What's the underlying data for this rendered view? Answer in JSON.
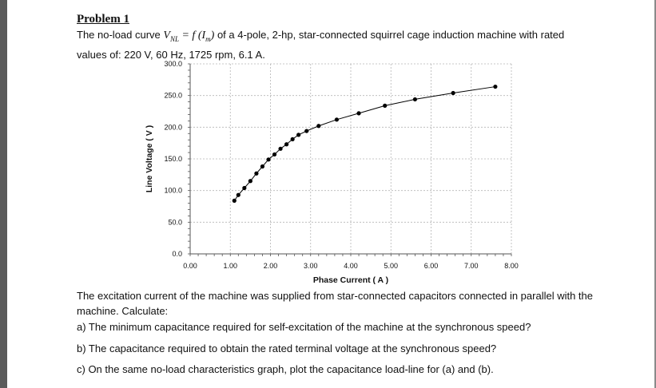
{
  "problem_title": "Problem 1",
  "intro_before": "The no-load curve ",
  "equation": "V",
  "eq_sub": "NL",
  "eq_rest": " = f (I",
  "eq_sub2": "m",
  "eq_end": ")",
  "intro_after": " of a 4-pole, 2-hp, star-connected squirrel cage induction machine with rated",
  "intro_line2": "values of: 220 V, 60 Hz, 1725 rpm, 6.1 A.",
  "description": "The excitation current of the machine was supplied from star-connected capacitors connected in parallel with the machine. Calculate:",
  "questions": [
    "a)  The minimum capacitance required for self-excitation of the machine at the synchronous speed?",
    "b)  The capacitance required to obtain the rated terminal voltage at the synchronous speed?",
    "c)  On the same no-load characteristics graph, plot the capacitance load-line for (a) and (b)."
  ],
  "chart_data": {
    "type": "line",
    "xlabel": "Phase Current ( A )",
    "ylabel": "Line Voltage ( V )",
    "xlim": [
      0,
      8
    ],
    "ylim": [
      0,
      300
    ],
    "x_ticks": [
      "0.00",
      "1.00",
      "2.00",
      "3.00",
      "4.00",
      "5.00",
      "6.00",
      "7.00",
      "8.00"
    ],
    "y_ticks": [
      "0.0",
      "50.0",
      "100.0",
      "150.0",
      "200.0",
      "250.0",
      "300.0"
    ],
    "grid": true,
    "series": [
      {
        "x": [
          1.1,
          1.2,
          1.35,
          1.5,
          1.65,
          1.8,
          1.95,
          2.1,
          2.25,
          2.4,
          2.55,
          2.7,
          2.9,
          3.2,
          3.65,
          4.2,
          4.85,
          5.6,
          6.55,
          7.6
        ],
        "y": [
          84,
          93,
          104,
          115,
          127,
          138,
          149,
          157,
          166,
          173,
          181,
          188,
          194,
          202,
          212,
          222,
          234,
          244,
          254,
          264
        ]
      }
    ]
  }
}
